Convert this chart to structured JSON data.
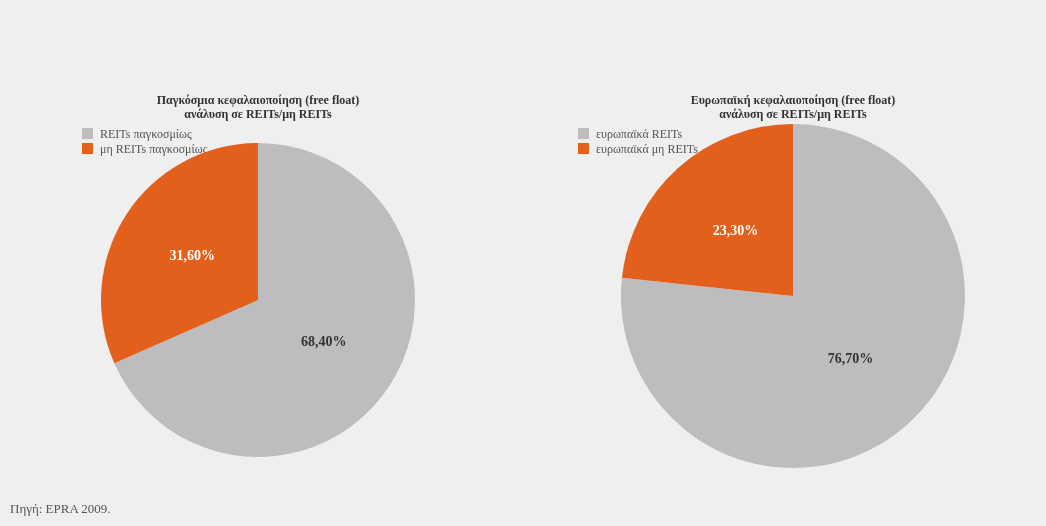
{
  "chart_data": [
    {
      "type": "pie",
      "title": "Παγκόσμια κεφαλαιοποίηση (free float)\nανάλυση σε REITs/μη REITs",
      "categories": [
        "REITs παγκοσμίως",
        "μη REITs παγκοσμίως"
      ],
      "values": [
        68.4,
        31.6
      ],
      "colors": [
        "#bdbdbf",
        "#e2601c"
      ],
      "value_labels": [
        "68,40%",
        "31,60%"
      ],
      "legend": "top left",
      "annotations": [
        "Πηγή: EPRA 2009."
      ]
    },
    {
      "type": "pie",
      "title": "Ευρωπαϊκή κεφαλαιοποίηση (free float)\nανάλυση σε REITs/μη REITs",
      "categories": [
        "ευρωπαϊκά REITs",
        "ευρωπαϊκά μη REITs"
      ],
      "values": [
        76.7,
        23.3
      ],
      "colors": [
        "#bdbdbf",
        "#e2601c"
      ],
      "value_labels": [
        "76,70%",
        "23,30%"
      ],
      "legend": "top left"
    }
  ]
}
